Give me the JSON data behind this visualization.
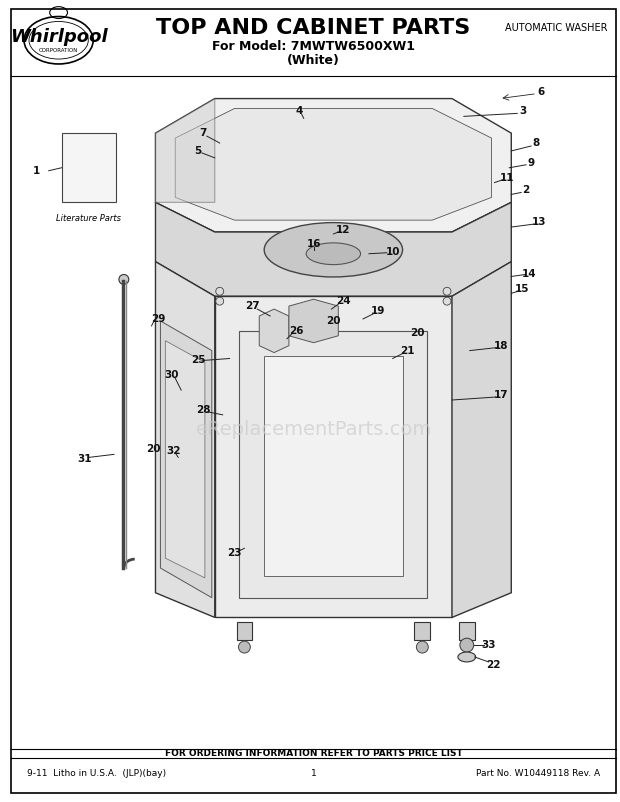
{
  "title": "TOP AND CABINET PARTS",
  "subtitle_line1": "For Model: 7MWTW6500XW1",
  "subtitle_line2": "(White)",
  "top_right_text": "AUTOMATIC WASHER",
  "bottom_center_text": "FOR ORDERING INFORMATION REFER TO PARTS PRICE LIST",
  "bottom_left_text": "9-11  Litho in U.S.A.  (JLP)(bay)",
  "bottom_center_num": "1",
  "bottom_right_text": "Part No. W10449118 Rev. A",
  "watermark": "eReplacementParts.com",
  "bg_color": "#ffffff",
  "border_color": "#000000",
  "text_color": "#000000",
  "gray_color": "#888888",
  "literature_label": "Literature Parts",
  "fig_width": 6.2,
  "fig_height": 8.02,
  "dpi": 100
}
